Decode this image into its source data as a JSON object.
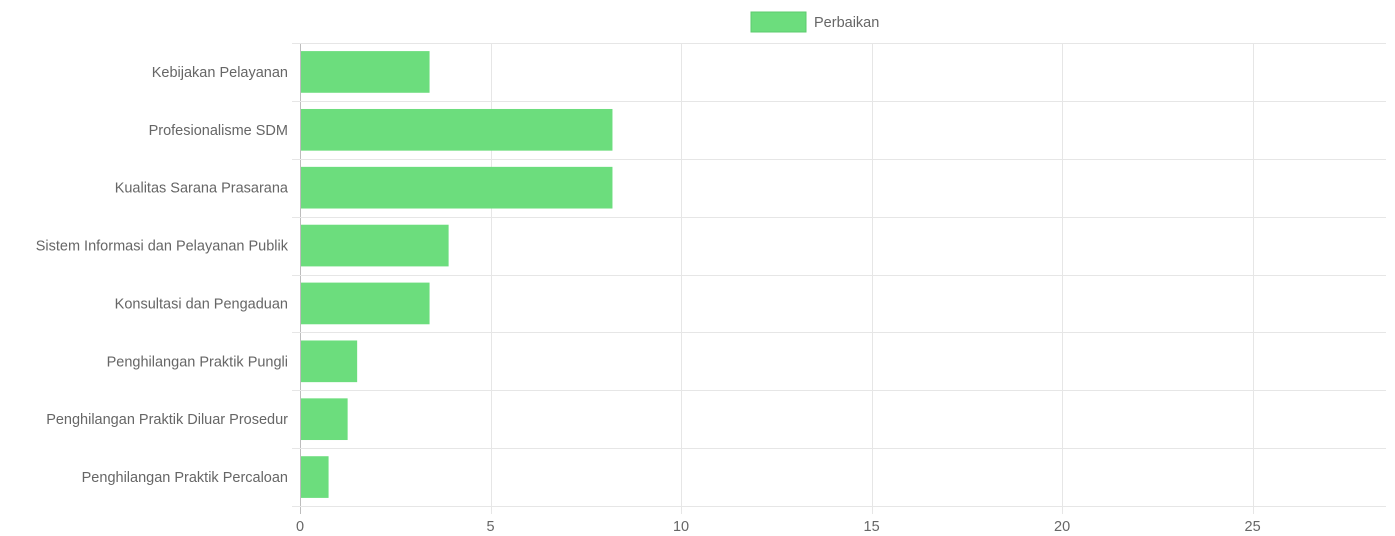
{
  "chart_data": {
    "type": "bar",
    "orientation": "horizontal",
    "categories": [
      "Kebijakan Pelayanan",
      "Profesionalisme SDM",
      "Kualitas Sarana Prasarana",
      "Sistem Informasi dan Pelayanan Publik",
      "Konsultasi dan Pengaduan",
      "Penghilangan Praktik Pungli",
      "Penghilangan Praktik Diluar Prosedur",
      "Penghilangan Praktik Percaloan"
    ],
    "series": [
      {
        "name": "Perbaikan",
        "values": [
          3.4,
          8.2,
          8.2,
          3.9,
          3.4,
          1.5,
          1.25,
          0.75
        ]
      }
    ],
    "xlim": [
      0,
      28.5
    ],
    "x_ticks": [
      "0",
      "5",
      "10",
      "15",
      "20",
      "25"
    ],
    "grid": true,
    "legend_position": "top"
  },
  "colors": {
    "bar": "#6cdd7d",
    "bar_border": "#5ccb6e",
    "grid": "#e6e6e6",
    "axis": "#bdbdbd",
    "text": "#666666"
  }
}
